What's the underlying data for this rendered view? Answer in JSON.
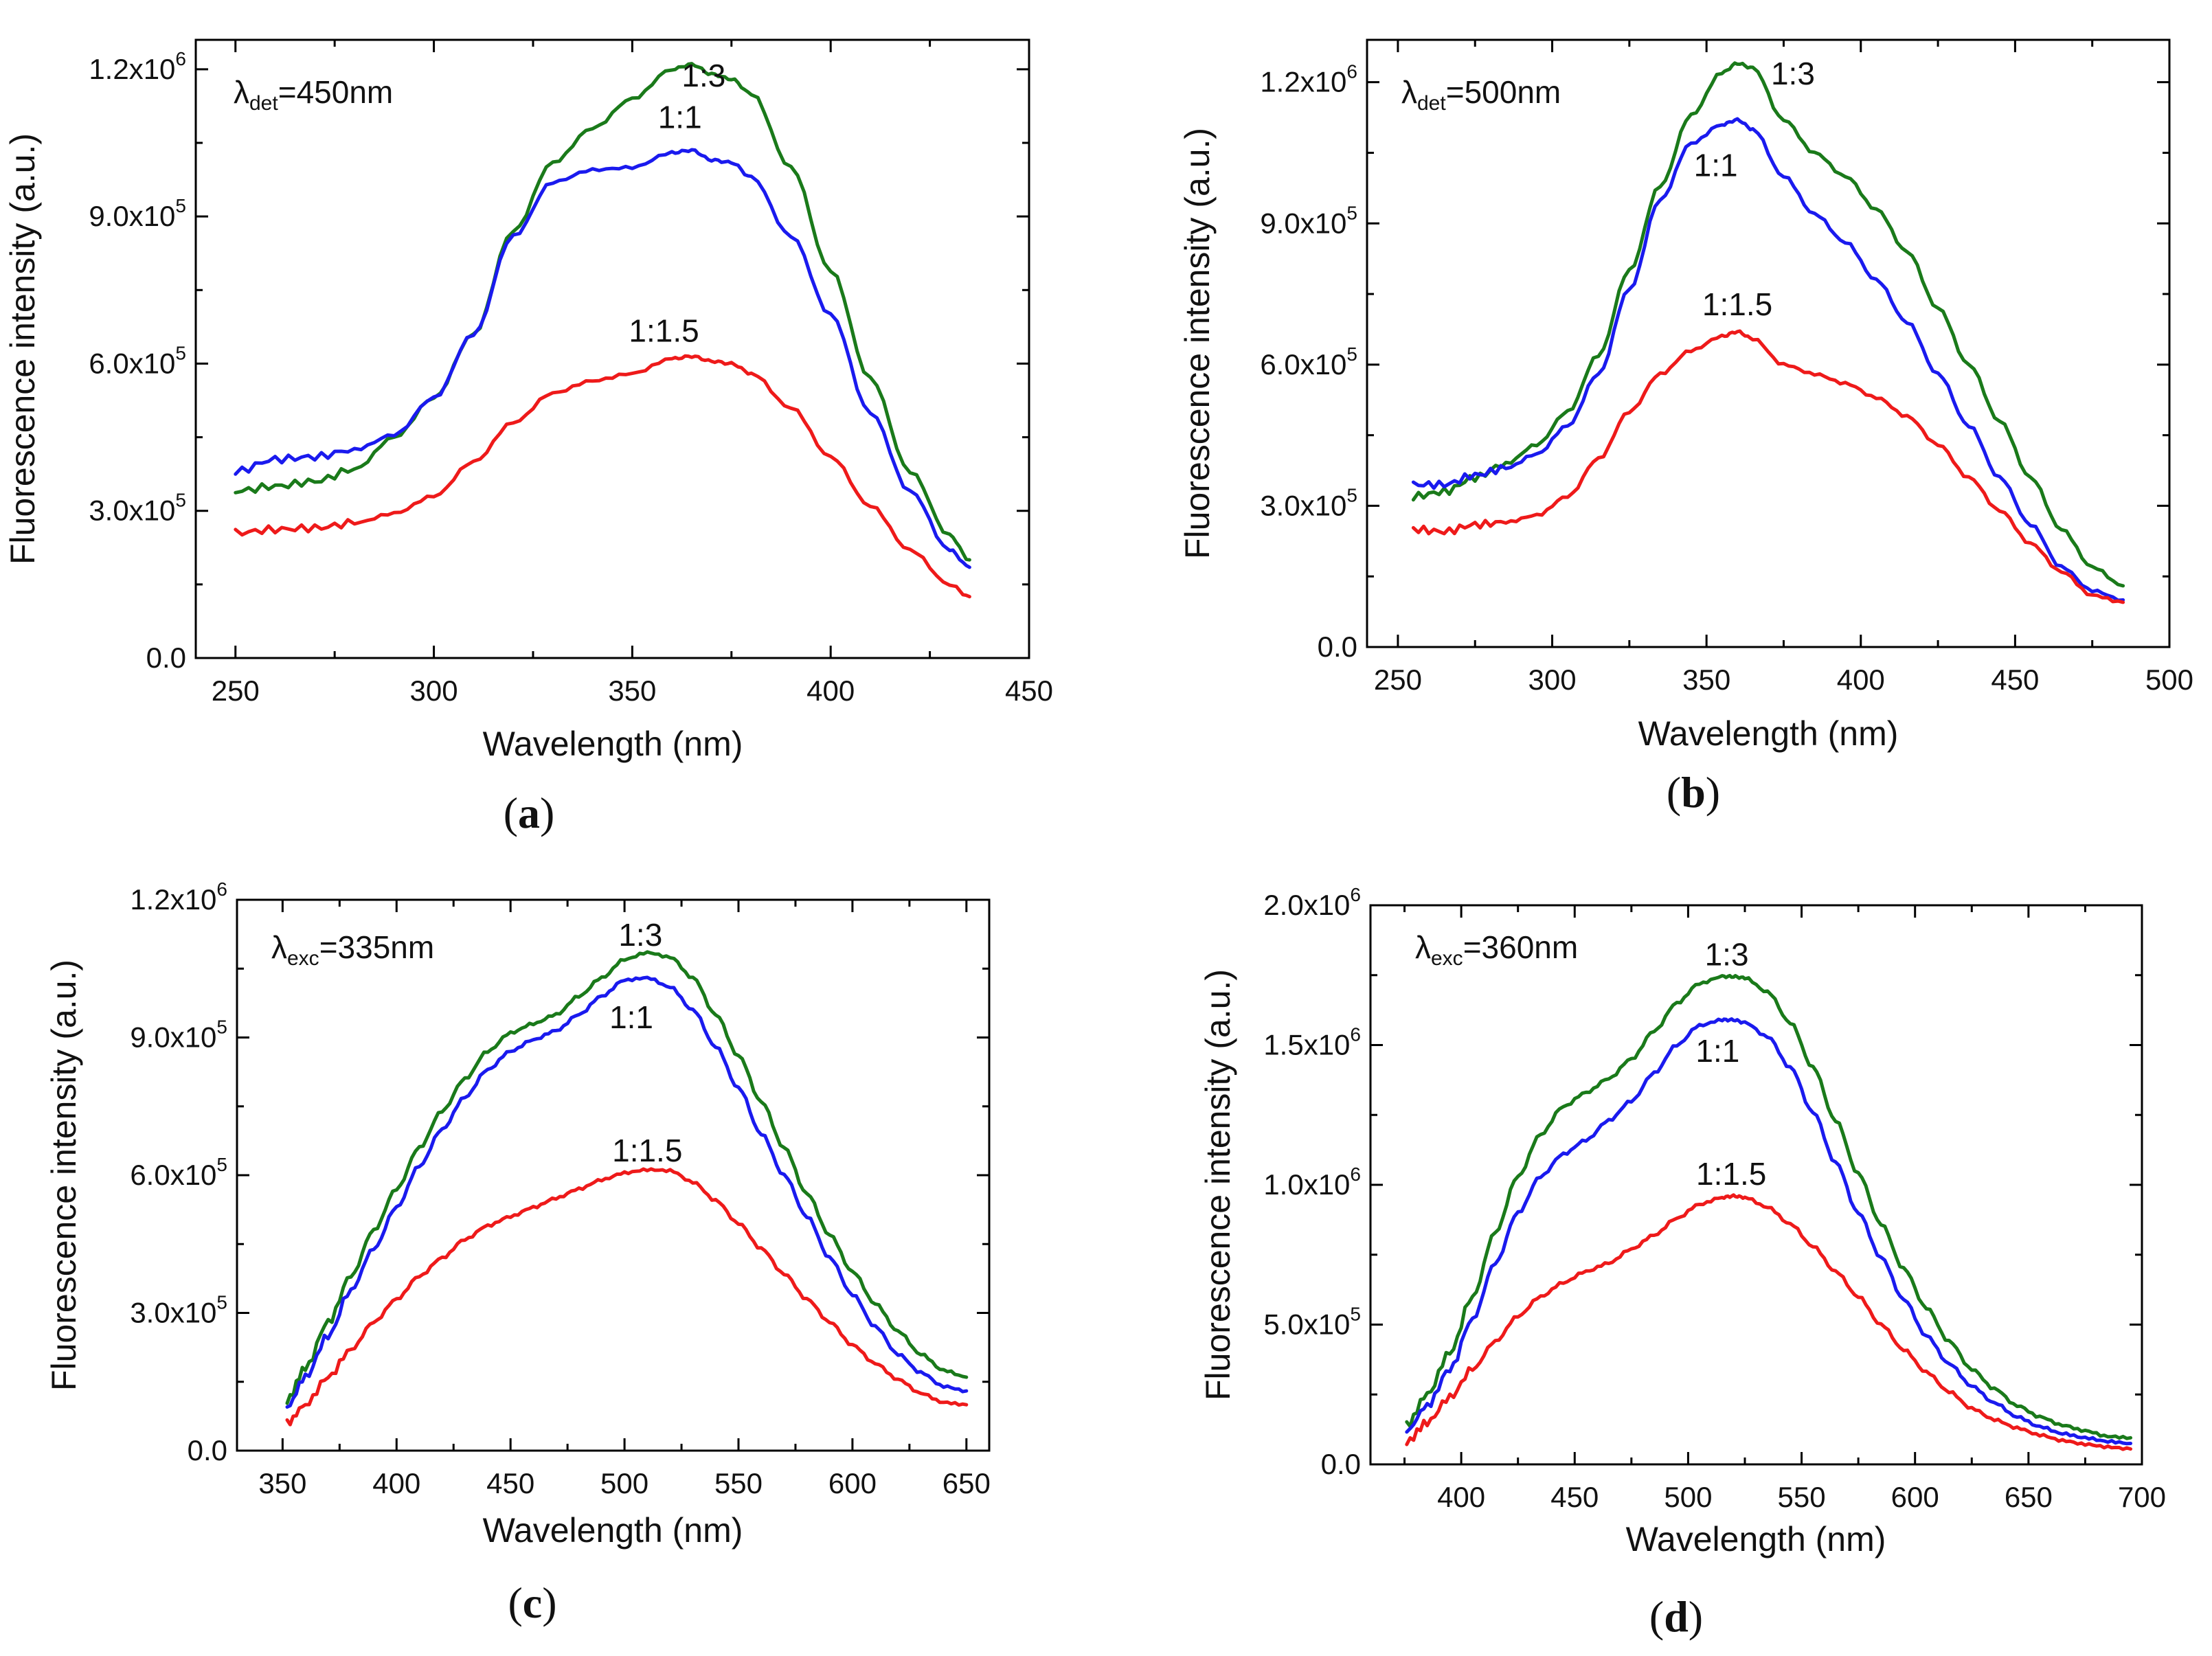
{
  "chart_data": [
    {
      "type": "line",
      "panel_label": "a",
      "annotation": {
        "symbol": "λ",
        "subscript": "det",
        "text": "=450nm"
      },
      "xlabel": "Wavelength (nm)",
      "ylabel": "Fluorescence intensity (a.u.)",
      "xlim": [
        240,
        450
      ],
      "ylim": [
        0,
        1260000
      ],
      "xticks": [
        250,
        300,
        350,
        400,
        450
      ],
      "yticks": [
        {
          "mant": "0.0",
          "exp": ""
        },
        {
          "mant": "3.0x10",
          "exp": "5"
        },
        {
          "mant": "6.0x10",
          "exp": "5"
        },
        {
          "mant": "9.0x10",
          "exp": "5"
        },
        {
          "mant": "1.2x10",
          "exp": "6"
        }
      ],
      "ytick_values": [
        0,
        300000,
        600000,
        900000,
        1200000
      ],
      "series": [
        {
          "name": "1:3",
          "color": "#1a7a1a",
          "x": [
            250,
            260,
            270,
            280,
            290,
            300,
            310,
            320,
            330,
            340,
            350,
            360,
            365,
            370,
            375,
            380,
            390,
            400,
            410,
            420,
            430,
            435
          ],
          "y": [
            340000,
            350000,
            360000,
            385000,
            450000,
            530000,
            660000,
            870000,
            1010000,
            1080000,
            1140000,
            1200000,
            1210000,
            1190000,
            1180000,
            1150000,
            1000000,
            790000,
            570000,
            380000,
            250000,
            200000
          ],
          "label_at": [
            368,
            1165000
          ]
        },
        {
          "name": "1:1",
          "color": "#1a1aee",
          "x": [
            250,
            260,
            270,
            280,
            290,
            300,
            310,
            320,
            330,
            340,
            350,
            360,
            365,
            370,
            375,
            380,
            390,
            400,
            410,
            420,
            430,
            435
          ],
          "y": [
            380000,
            405000,
            410000,
            425000,
            455000,
            530000,
            660000,
            860000,
            970000,
            995000,
            1000000,
            1030000,
            1035000,
            1015000,
            1010000,
            980000,
            860000,
            700000,
            500000,
            340000,
            220000,
            185000
          ],
          "label_at": [
            362,
            1080000
          ]
        },
        {
          "name": "1:1.5",
          "color": "#ee1a1a",
          "x": [
            250,
            260,
            270,
            280,
            290,
            300,
            310,
            320,
            330,
            340,
            350,
            360,
            365,
            370,
            375,
            380,
            390,
            400,
            410,
            420,
            430,
            435
          ],
          "y": [
            255000,
            262000,
            265000,
            275000,
            295000,
            330000,
            400000,
            480000,
            540000,
            565000,
            580000,
            610000,
            615000,
            605000,
            600000,
            580000,
            510000,
            410000,
            310000,
            220000,
            150000,
            125000
          ],
          "label_at": [
            358,
            645000
          ]
        }
      ]
    },
    {
      "type": "line",
      "panel_label": "b",
      "annotation": {
        "symbol": "λ",
        "subscript": "det",
        "text": "=500nm"
      },
      "xlabel": "Wavelength (nm)",
      "ylabel": "Fluorescence intensity (a.u.)",
      "xlim": [
        240,
        500
      ],
      "ylim": [
        0,
        1290000
      ],
      "xticks": [
        250,
        300,
        350,
        400,
        450,
        500
      ],
      "yticks": [
        {
          "mant": "0.0",
          "exp": ""
        },
        {
          "mant": "3.0x10",
          "exp": "5"
        },
        {
          "mant": "6.0x10",
          "exp": "5"
        },
        {
          "mant": "9.0x10",
          "exp": "5"
        },
        {
          "mant": "1.2x10",
          "exp": "6"
        }
      ],
      "ytick_values": [
        0,
        300000,
        600000,
        900000,
        1200000
      ],
      "series": [
        {
          "name": "1:3",
          "color": "#1a7a1a",
          "x": [
            255,
            265,
            275,
            285,
            295,
            305,
            315,
            325,
            335,
            345,
            355,
            360,
            365,
            375,
            385,
            395,
            405,
            415,
            425,
            435,
            445,
            455,
            465,
            475,
            485
          ],
          "y": [
            320000,
            330000,
            360000,
            390000,
            430000,
            500000,
            620000,
            800000,
            980000,
            1130000,
            1220000,
            1240000,
            1230000,
            1120000,
            1050000,
            1000000,
            930000,
            840000,
            720000,
            600000,
            480000,
            360000,
            250000,
            170000,
            130000
          ],
          "label_at": [
            378,
            1195000
          ]
        },
        {
          "name": "1:1",
          "color": "#1a1aee",
          "x": [
            255,
            265,
            275,
            285,
            295,
            305,
            315,
            325,
            335,
            345,
            355,
            360,
            365,
            375,
            385,
            395,
            405,
            415,
            425,
            435,
            445,
            455,
            465,
            475,
            485
          ],
          "y": [
            345000,
            345000,
            365000,
            380000,
            410000,
            470000,
            580000,
            760000,
            950000,
            1070000,
            1110000,
            1120000,
            1100000,
            1000000,
            920000,
            860000,
            780000,
            690000,
            580000,
            470000,
            360000,
            260000,
            170000,
            120000,
            100000
          ],
          "label_at": [
            353,
            1000000
          ]
        },
        {
          "name": "1:1.5",
          "color": "#ee1a1a",
          "x": [
            255,
            265,
            275,
            285,
            295,
            305,
            315,
            325,
            335,
            345,
            355,
            360,
            365,
            375,
            385,
            395,
            405,
            415,
            425,
            435,
            445,
            455,
            465,
            475,
            485
          ],
          "y": [
            250000,
            245000,
            260000,
            265000,
            280000,
            320000,
            400000,
            500000,
            580000,
            630000,
            660000,
            670000,
            655000,
            600000,
            580000,
            560000,
            530000,
            490000,
            430000,
            360000,
            290000,
            220000,
            160000,
            110000,
            95000
          ],
          "label_at": [
            360,
            705000
          ]
        }
      ]
    },
    {
      "type": "line",
      "panel_label": "c",
      "annotation": {
        "symbol": "λ",
        "subscript": "exc",
        "text": "=335nm"
      },
      "xlabel": "Wavelength (nm)",
      "ylabel": "Fluorescence intensity (a.u.)",
      "xlim": [
        330,
        660
      ],
      "ylim": [
        0,
        1200000
      ],
      "xticks": [
        350,
        400,
        450,
        500,
        550,
        600,
        650
      ],
      "yticks": [
        {
          "mant": "0.0",
          "exp": ""
        },
        {
          "mant": "3.0x10",
          "exp": "5"
        },
        {
          "mant": "6.0x10",
          "exp": "5"
        },
        {
          "mant": "9.0x10",
          "exp": "5"
        },
        {
          "mant": "1.2x10",
          "exp": "6"
        }
      ],
      "ytick_values": [
        0,
        300000,
        600000,
        900000,
        1200000
      ],
      "series": [
        {
          "name": "1:3",
          "color": "#1a7a1a",
          "x": [
            352,
            360,
            370,
            380,
            390,
            400,
            410,
            420,
            430,
            440,
            450,
            460,
            470,
            480,
            490,
            500,
            510,
            520,
            530,
            540,
            550,
            560,
            570,
            580,
            590,
            600,
            610,
            620,
            630,
            640,
            650
          ],
          "y": [
            110000,
            180000,
            280000,
            380000,
            480000,
            570000,
            660000,
            740000,
            810000,
            870000,
            910000,
            930000,
            950000,
            990000,
            1030000,
            1070000,
            1085000,
            1075000,
            1030000,
            950000,
            860000,
            760000,
            660000,
            560000,
            470000,
            390000,
            320000,
            260000,
            210000,
            175000,
            160000
          ],
          "label_at": [
            507,
            1100000
          ]
        },
        {
          "name": "1:1",
          "color": "#1a1aee",
          "x": [
            352,
            360,
            370,
            380,
            390,
            400,
            410,
            420,
            430,
            440,
            450,
            460,
            470,
            480,
            490,
            500,
            510,
            520,
            530,
            540,
            550,
            560,
            570,
            580,
            590,
            600,
            610,
            620,
            630,
            640,
            650
          ],
          "y": [
            95000,
            160000,
            250000,
            350000,
            440000,
            530000,
            620000,
            700000,
            770000,
            830000,
            870000,
            895000,
            915000,
            950000,
            990000,
            1025000,
            1030000,
            1010000,
            960000,
            880000,
            790000,
            690000,
            600000,
            510000,
            420000,
            340000,
            270000,
            210000,
            170000,
            140000,
            130000
          ],
          "label_at": [
            503,
            920000
          ]
        },
        {
          "name": "1:1.5",
          "color": "#ee1a1a",
          "x": [
            352,
            360,
            370,
            380,
            390,
            400,
            410,
            420,
            430,
            440,
            450,
            460,
            470,
            480,
            490,
            500,
            510,
            520,
            530,
            540,
            550,
            560,
            570,
            580,
            590,
            600,
            610,
            620,
            630,
            640,
            650
          ],
          "y": [
            60000,
            100000,
            160000,
            220000,
            280000,
            330000,
            380000,
            420000,
            460000,
            490000,
            510000,
            530000,
            550000,
            570000,
            590000,
            605000,
            612000,
            610000,
            585000,
            545000,
            495000,
            440000,
            385000,
            330000,
            280000,
            230000,
            190000,
            155000,
            125000,
            105000,
            100000
          ],
          "label_at": [
            510,
            630000
          ]
        }
      ]
    },
    {
      "type": "line",
      "panel_label": "d",
      "annotation": {
        "symbol": "λ",
        "subscript": "exc",
        "text": "=360nm"
      },
      "xlabel": "Wavelength (nm)",
      "ylabel": "Fluorescence intensity (a.u.)",
      "xlim": [
        360,
        700
      ],
      "ylim": [
        0,
        2000000
      ],
      "xticks": [
        400,
        450,
        500,
        550,
        600,
        650,
        700
      ],
      "yticks": [
        {
          "mant": "0.0",
          "exp": ""
        },
        {
          "mant": "5.0x10",
          "exp": "5"
        },
        {
          "mant": "1.0x10",
          "exp": "6"
        },
        {
          "mant": "1.5x10",
          "exp": "6"
        },
        {
          "mant": "2.0x10",
          "exp": "6"
        }
      ],
      "ytick_values": [
        0,
        500000,
        1000000,
        1500000,
        2000000
      ],
      "series": [
        {
          "name": "1:3",
          "color": "#1a7a1a",
          "x": [
            376,
            385,
            395,
            405,
            415,
            425,
            435,
            445,
            455,
            465,
            475,
            485,
            495,
            505,
            515,
            520,
            525,
            535,
            545,
            555,
            565,
            575,
            585,
            595,
            605,
            615,
            625,
            635,
            645,
            655,
            665,
            675,
            685,
            695
          ],
          "y": [
            140000,
            250000,
            400000,
            600000,
            830000,
            1030000,
            1180000,
            1280000,
            1330000,
            1380000,
            1450000,
            1550000,
            1650000,
            1720000,
            1745000,
            1745000,
            1740000,
            1690000,
            1580000,
            1420000,
            1230000,
            1040000,
            860000,
            700000,
            560000,
            440000,
            340000,
            270000,
            210000,
            170000,
            140000,
            120000,
            100000,
            95000
          ],
          "label_at": [
            517,
            1785000
          ]
        },
        {
          "name": "1:1",
          "color": "#1a1aee",
          "x": [
            376,
            385,
            395,
            405,
            415,
            425,
            435,
            445,
            455,
            465,
            475,
            485,
            495,
            505,
            515,
            520,
            525,
            535,
            545,
            555,
            565,
            575,
            585,
            595,
            605,
            615,
            625,
            635,
            645,
            655,
            665,
            675,
            685,
            695
          ],
          "y": [
            120000,
            210000,
            340000,
            520000,
            720000,
            900000,
            1030000,
            1110000,
            1160000,
            1230000,
            1300000,
            1400000,
            1500000,
            1570000,
            1590000,
            1590000,
            1580000,
            1530000,
            1420000,
            1260000,
            1080000,
            900000,
            740000,
            590000,
            460000,
            360000,
            280000,
            220000,
            170000,
            135000,
            110000,
            95000,
            82000,
            75000
          ],
          "label_at": [
            513,
            1440000
          ]
        },
        {
          "name": "1:1.5",
          "color": "#ee1a1a",
          "x": [
            376,
            385,
            395,
            405,
            415,
            425,
            435,
            445,
            455,
            465,
            475,
            485,
            495,
            505,
            515,
            520,
            525,
            535,
            545,
            555,
            565,
            575,
            585,
            595,
            605,
            615,
            625,
            635,
            645,
            655,
            665,
            675,
            685,
            695
          ],
          "y": [
            80000,
            150000,
            240000,
            340000,
            440000,
            530000,
            600000,
            650000,
            690000,
            720000,
            770000,
            820000,
            880000,
            930000,
            955000,
            960000,
            955000,
            920000,
            860000,
            780000,
            690000,
            600000,
            500000,
            410000,
            330000,
            260000,
            200000,
            160000,
            130000,
            105000,
            85000,
            72000,
            62000,
            55000
          ],
          "label_at": [
            519,
            1000000
          ]
        }
      ]
    }
  ]
}
